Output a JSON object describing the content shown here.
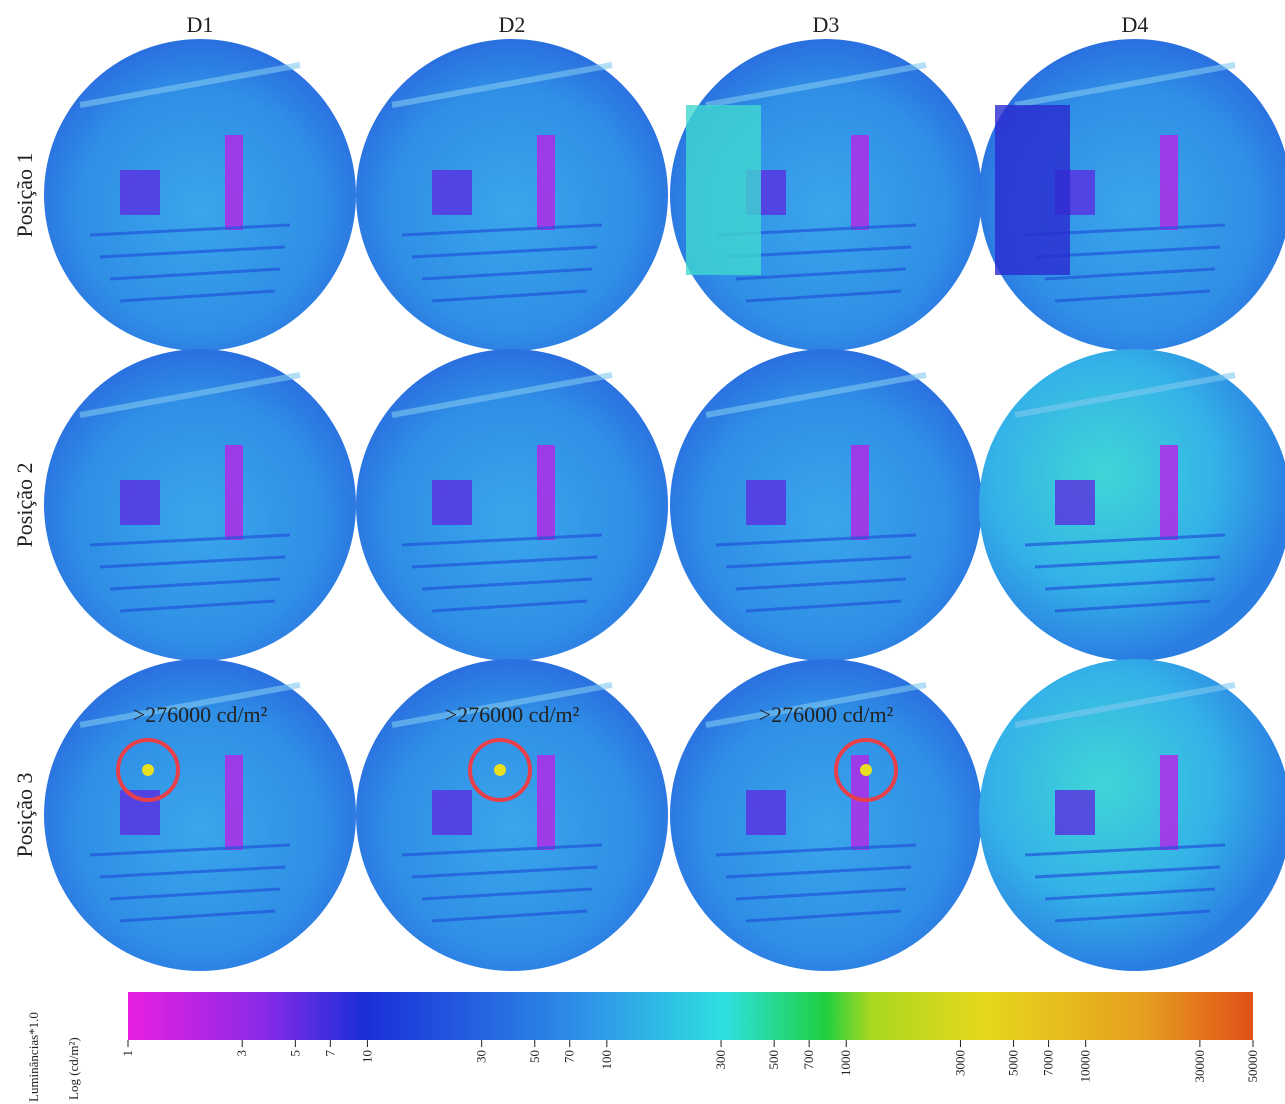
{
  "columns": [
    "D1",
    "D2",
    "D3",
    "D4"
  ],
  "rows": [
    "Posição 1",
    "Posição 2",
    "Posição 3"
  ],
  "annotations": [
    ">276000 cd/m²",
    ">276000 cd/m²",
    ">276000 cd/m²"
  ],
  "colorbar": {
    "title": "Luminâncias*1.0",
    "label": "Log (cd/m²)",
    "log": true,
    "lim": [
      1,
      50000
    ],
    "ticks": [
      1,
      3,
      5,
      7,
      10,
      30,
      50,
      70,
      100,
      300,
      500,
      700,
      1000,
      3000,
      5000,
      7000,
      10000,
      30000,
      50000
    ]
  }
}
